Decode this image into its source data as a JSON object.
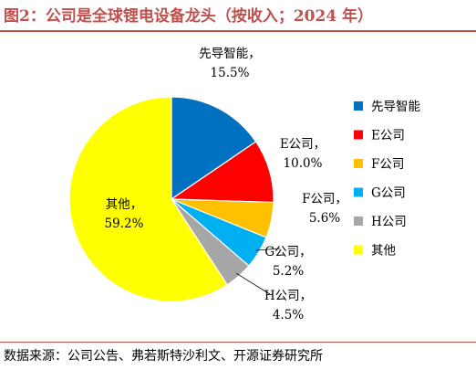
{
  "header": {
    "title": "图2：公司是全球锂电设备龙头（按收入；2024 年）"
  },
  "footer": {
    "source": "数据来源：公司公告、弗若斯特沙利文、开源证券研究所"
  },
  "colors": {
    "title": "#c0504d",
    "rule": "#c0504d"
  },
  "chart_data": {
    "type": "pie",
    "title": "",
    "legend_position": "right",
    "start_angle": "12 o'clock",
    "direction": "clockwise",
    "slices": [
      {
        "label": "先导智能",
        "value": 15.5,
        "value_label": "15.5%",
        "color": "#0070c0"
      },
      {
        "label": "E公司",
        "value": 10.0,
        "value_label": "10.0%",
        "color": "#ff0000"
      },
      {
        "label": "F公司",
        "value": 5.6,
        "value_label": "5.6%",
        "color": "#ffc000"
      },
      {
        "label": "G公司",
        "value": 5.2,
        "value_label": "5.2%",
        "color": "#00b0f0"
      },
      {
        "label": "H公司",
        "value": 4.5,
        "value_label": "4.5%",
        "color": "#a6a6a6"
      },
      {
        "label": "其他",
        "value": 59.2,
        "value_label": "59.2%",
        "color": "#ffff00"
      }
    ]
  }
}
